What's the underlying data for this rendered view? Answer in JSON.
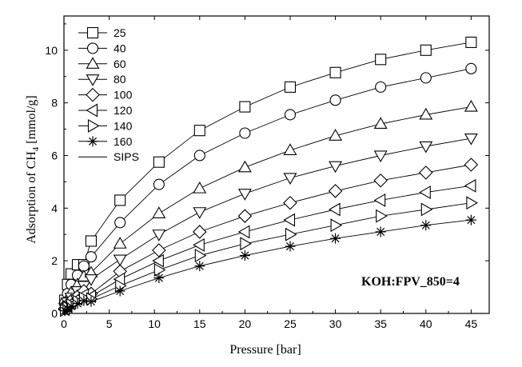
{
  "chart_data": {
    "type": "scatter",
    "xlabel": "Pressure [bar]",
    "ylabel_prefix": "Adsorption of CH",
    "ylabel_sub": "4",
    "ylabel_suffix": " [mmol/g]",
    "xlim": [
      0,
      47
    ],
    "ylim": [
      0,
      11.3
    ],
    "xticks": [
      0,
      5,
      10,
      15,
      20,
      25,
      30,
      35,
      40,
      45
    ],
    "yticks": [
      0,
      2,
      4,
      6,
      8,
      10
    ],
    "annotation": "KOH:FPV_850=4",
    "legend_position": "top-left",
    "fit_legend_label": "SIPS",
    "x": [
      0.1,
      0.4,
      0.8,
      1.5,
      2.2,
      3,
      6.2,
      10.5,
      15,
      20,
      25,
      30,
      35,
      40,
      45
    ],
    "series": [
      {
        "name": "25",
        "marker": "square",
        "values": [
          0.5,
          1.1,
          1.5,
          1.85,
          1.85,
          2.75,
          4.3,
          5.75,
          6.95,
          7.85,
          8.6,
          9.15,
          9.65,
          10.0,
          10.3
        ]
      },
      {
        "name": "40",
        "marker": "circle",
        "values": [
          0.4,
          0.75,
          1.1,
          1.45,
          1.8,
          2.15,
          3.45,
          4.9,
          6.0,
          6.85,
          7.55,
          8.1,
          8.6,
          8.95,
          9.3
        ]
      },
      {
        "name": "60",
        "marker": "triangle-up",
        "values": [
          0.3,
          0.55,
          0.8,
          1.1,
          1.4,
          1.55,
          2.65,
          3.8,
          4.75,
          5.55,
          6.2,
          6.75,
          7.2,
          7.55,
          7.85
        ]
      },
      {
        "name": "80",
        "marker": "triangle-down",
        "values": [
          0.22,
          0.42,
          0.6,
          0.85,
          1.05,
          1.3,
          2.05,
          3.0,
          3.85,
          4.55,
          5.15,
          5.6,
          6.0,
          6.35,
          6.65
        ]
      },
      {
        "name": "100",
        "marker": "diamond",
        "values": [
          0.18,
          0.32,
          0.48,
          0.65,
          0.85,
          0.75,
          1.6,
          2.4,
          3.1,
          3.7,
          4.2,
          4.65,
          5.05,
          5.35,
          5.65
        ]
      },
      {
        "name": "120",
        "marker": "triangle-left",
        "values": [
          0.15,
          0.27,
          0.4,
          0.55,
          0.7,
          0.65,
          1.3,
          2.0,
          2.6,
          3.1,
          3.55,
          3.95,
          4.3,
          4.6,
          4.85
        ]
      },
      {
        "name": "140",
        "marker": "triangle-right",
        "values": [
          0.12,
          0.22,
          0.33,
          0.45,
          0.58,
          0.55,
          1.05,
          1.65,
          2.2,
          2.65,
          3.0,
          3.35,
          3.7,
          3.95,
          4.2
        ]
      },
      {
        "name": "160",
        "marker": "asterisk",
        "values": [
          0.1,
          0.18,
          0.27,
          0.38,
          0.48,
          0.45,
          0.85,
          1.35,
          1.8,
          2.2,
          2.55,
          2.85,
          3.1,
          3.35,
          3.55
        ]
      }
    ]
  }
}
